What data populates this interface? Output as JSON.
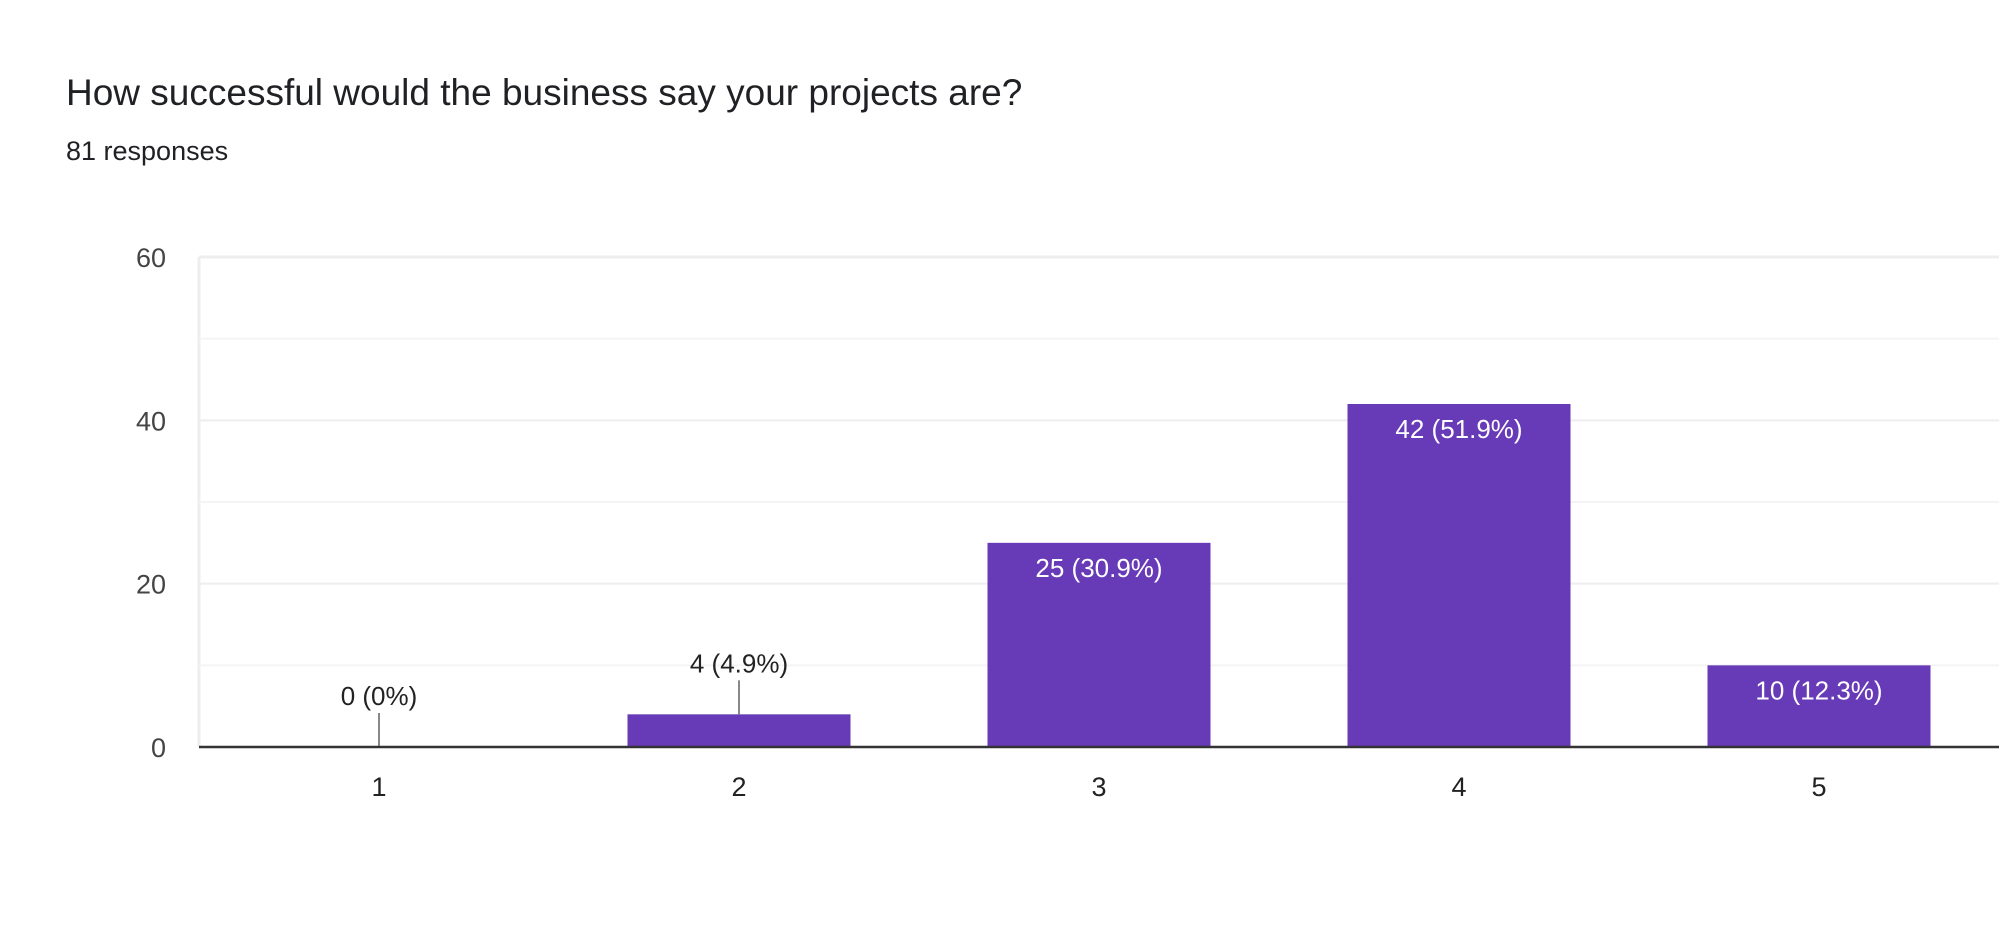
{
  "chart_data": {
    "type": "bar",
    "title": "How successful would the business say your projects are?",
    "subtitle": "81 responses",
    "categories": [
      "1",
      "2",
      "3",
      "4",
      "5"
    ],
    "values": [
      0,
      4,
      25,
      42,
      10
    ],
    "data_labels": [
      "0 (0%)",
      "4 (4.9%)",
      "25 (30.9%)",
      "42 (51.9%)",
      "10 (12.3%)"
    ],
    "xlabel": "",
    "ylabel": "",
    "ylim": [
      0,
      60
    ],
    "yticks": [
      0,
      20,
      40,
      60
    ],
    "grid": true,
    "bar_color": "#673ab7"
  }
}
